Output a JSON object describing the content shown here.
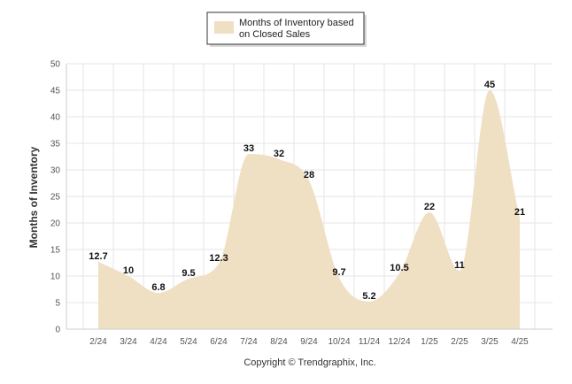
{
  "chart_data": {
    "type": "area",
    "title": "",
    "xlabel": "",
    "ylabel": "Months of Inventory",
    "categories": [
      "2/24",
      "3/24",
      "4/24",
      "5/24",
      "6/24",
      "7/24",
      "8/24",
      "9/24",
      "10/24",
      "11/24",
      "12/24",
      "1/25",
      "2/25",
      "3/25",
      "4/25"
    ],
    "series": [
      {
        "name": "Months of Inventory based on Closed Sales",
        "values": [
          12.7,
          10,
          6.8,
          9.5,
          12.3,
          33,
          32,
          28,
          9.7,
          5.2,
          10.5,
          22,
          11,
          45,
          21
        ],
        "labels": [
          "12.7",
          "10",
          "6.8",
          "9.5",
          "12.3",
          "33",
          "32",
          "28",
          "9.7",
          "5.2",
          "10.5",
          "22",
          "11",
          "45",
          "21"
        ]
      }
    ],
    "ylim": [
      0,
      50
    ],
    "yticks": [
      0,
      5,
      10,
      15,
      20,
      25,
      30,
      35,
      40,
      45,
      50
    ],
    "grid": true,
    "legend_position": "top-center"
  },
  "legend": {
    "line1": "Months of Inventory based",
    "line2": "on Closed Sales"
  },
  "colors": {
    "area_fill": "#efdfc3",
    "grid": "#e6e6e6",
    "axis": "#cccccc"
  },
  "footer": {
    "copyright": "Copyright © Trendgraphix, Inc."
  }
}
